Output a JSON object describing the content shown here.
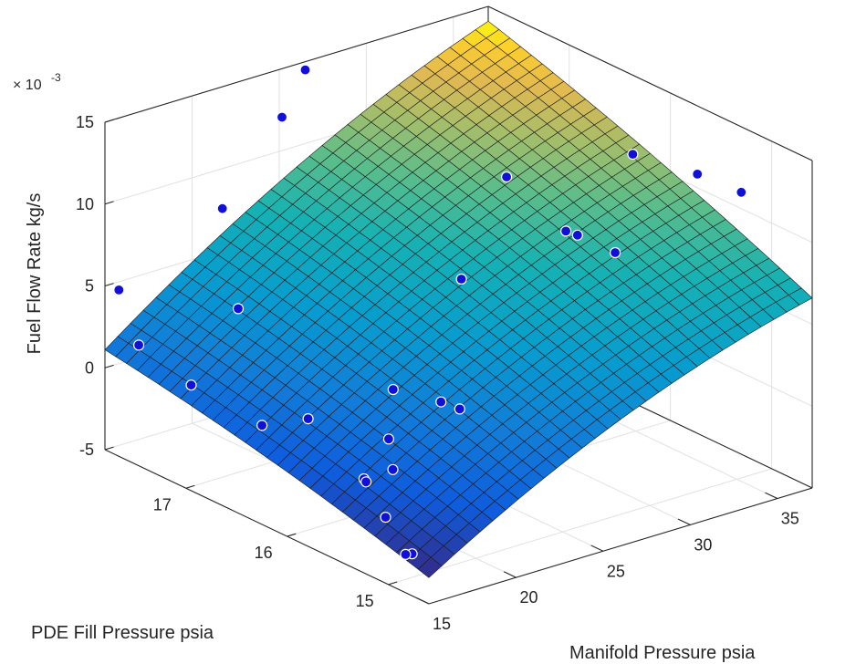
{
  "chart_data": {
    "type": "surface",
    "xlabel": "Manifold Pressure psia",
    "ylabel": "PDE Fill Pressure psia",
    "zlabel": "Fuel Flow Rate kg/s",
    "z_exponent_label": "× 10",
    "z_exponent_power": "-3",
    "xlim": [
      15,
      37
    ],
    "ylim": [
      14.6,
      17.8
    ],
    "zlim": [
      -5,
      15
    ],
    "xticks": [
      "15",
      "20",
      "25",
      "30",
      "35"
    ],
    "yticks": [
      "15",
      "16",
      "17"
    ],
    "zticks": [
      "-5",
      "0",
      "5",
      "10",
      "15"
    ],
    "grid": true,
    "surface_colormap": "parula",
    "surface_fit": {
      "description_none": "",
      "x_range": [
        15,
        37
      ],
      "y_range": [
        14.6,
        17.8
      ],
      "mesh_lines": 30
    },
    "points_color": "#1010d8",
    "points": [
      {
        "x": 15.2,
        "y": 14.8,
        "z": -2.6
      },
      {
        "x": 15.4,
        "y": 14.9,
        "z": -3.0
      },
      {
        "x": 16.0,
        "y": 15.2,
        "z": -1.8
      },
      {
        "x": 16.5,
        "y": 15.5,
        "z": -0.5
      },
      {
        "x": 17.0,
        "y": 15.3,
        "z": 0.5
      },
      {
        "x": 18.5,
        "y": 15.6,
        "z": 1.0
      },
      {
        "x": 17.2,
        "y": 15.6,
        "z": -1.2
      },
      {
        "x": 16.2,
        "y": 16.0,
        "z": 1.8
      },
      {
        "x": 15.3,
        "y": 16.3,
        "z": 0.8
      },
      {
        "x": 15.3,
        "y": 17.0,
        "z": 1.2
      },
      {
        "x": 15.2,
        "y": 17.5,
        "z": 2.2
      },
      {
        "x": 15.8,
        "y": 17.8,
        "z": 4.5
      },
      {
        "x": 18.0,
        "y": 17.0,
        "z": 5.0
      },
      {
        "x": 20.5,
        "y": 15.9,
        "z": 2.5
      },
      {
        "x": 21.5,
        "y": 15.6,
        "z": 2.3
      },
      {
        "x": 22.0,
        "y": 15.5,
        "z": 2.0
      },
      {
        "x": 20.0,
        "y": 17.5,
        "z": 9.0
      },
      {
        "x": 24.0,
        "y": 17.6,
        "z": 13.0
      },
      {
        "x": 25.0,
        "y": 16.0,
        "z": 7.5
      },
      {
        "x": 26.5,
        "y": 17.8,
        "z": 14.5
      },
      {
        "x": 30.5,
        "y": 16.5,
        "z": 10.5
      },
      {
        "x": 30.5,
        "y": 15.8,
        "z": 9.0
      },
      {
        "x": 31.0,
        "y": 16.0,
        "z": 8.5
      },
      {
        "x": 31.5,
        "y": 15.6,
        "z": 8.2
      },
      {
        "x": 36.0,
        "y": 16.2,
        "z": 11.0
      },
      {
        "x": 36.8,
        "y": 15.7,
        "z": 11.0
      },
      {
        "x": 37.0,
        "y": 15.3,
        "z": 11.0
      }
    ]
  }
}
